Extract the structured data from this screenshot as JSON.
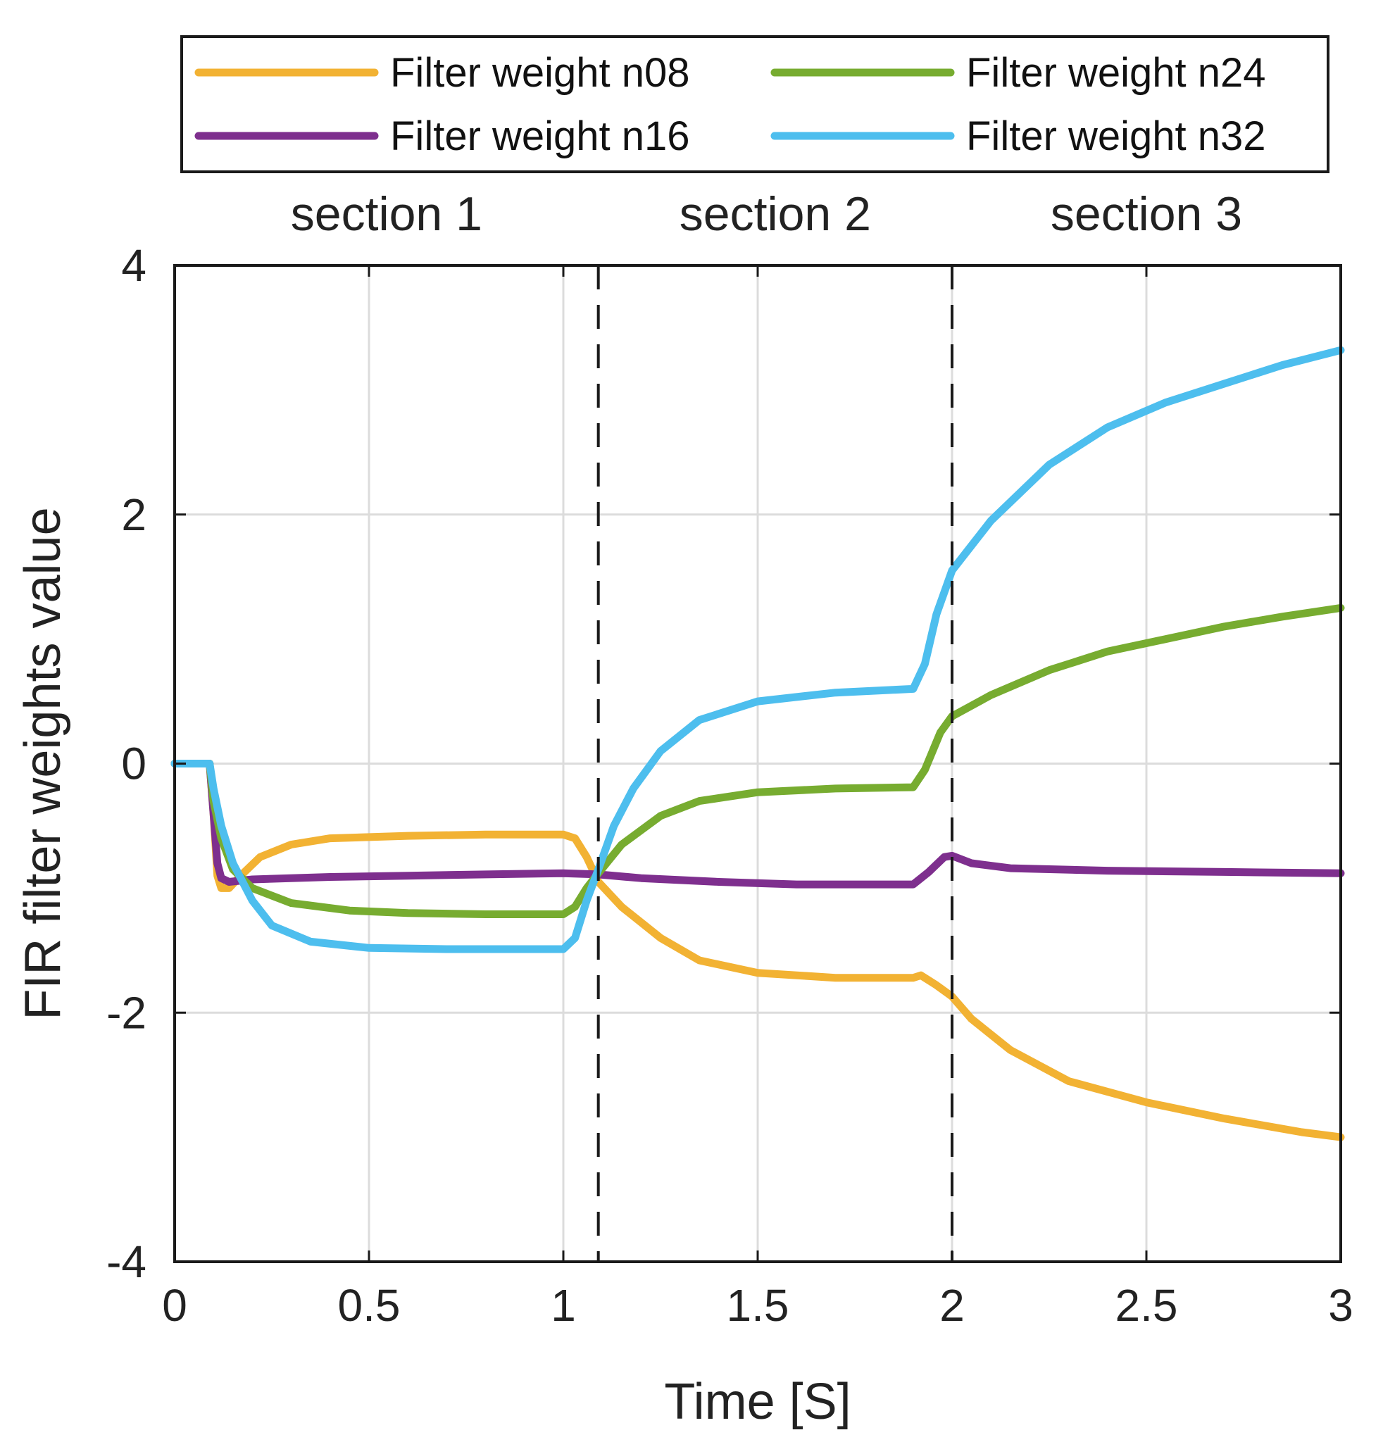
{
  "chart_data": {
    "type": "line",
    "xlabel": "Time [S]",
    "ylabel": "FIR filter weights value",
    "xlim": [
      0,
      3
    ],
    "ylim": [
      -4,
      4
    ],
    "xticks": [
      0,
      0.5,
      1,
      1.5,
      2,
      2.5,
      3
    ],
    "xtick_labels": [
      "0",
      "0.5",
      "1",
      "1.5",
      "2",
      "2.5",
      "3"
    ],
    "yticks": [
      -4,
      -2,
      0,
      2,
      4
    ],
    "ytick_labels": [
      "-4",
      "-2",
      "0",
      "2",
      "4"
    ],
    "grid": true,
    "legend_position": "top",
    "section_boundaries": [
      1.09,
      2.0
    ],
    "sections": [
      {
        "label": "section 1",
        "center": 0.545
      },
      {
        "label": "section 2",
        "center": 1.545
      },
      {
        "label": "section 3",
        "center": 2.5
      }
    ],
    "series": [
      {
        "name": "Filter weight n08",
        "color": "#F2B233",
        "points": [
          [
            0,
            0
          ],
          [
            0.09,
            0
          ],
          [
            0.1,
            -0.4
          ],
          [
            0.11,
            -0.9
          ],
          [
            0.12,
            -1.0
          ],
          [
            0.14,
            -1.0
          ],
          [
            0.17,
            -0.9
          ],
          [
            0.22,
            -0.75
          ],
          [
            0.3,
            -0.65
          ],
          [
            0.4,
            -0.6
          ],
          [
            0.6,
            -0.58
          ],
          [
            0.8,
            -0.57
          ],
          [
            1.0,
            -0.57
          ],
          [
            1.03,
            -0.6
          ],
          [
            1.06,
            -0.75
          ],
          [
            1.09,
            -0.95
          ],
          [
            1.15,
            -1.15
          ],
          [
            1.25,
            -1.4
          ],
          [
            1.35,
            -1.58
          ],
          [
            1.5,
            -1.68
          ],
          [
            1.7,
            -1.72
          ],
          [
            1.9,
            -1.72
          ],
          [
            1.92,
            -1.7
          ],
          [
            1.96,
            -1.78
          ],
          [
            2.0,
            -1.87
          ],
          [
            2.05,
            -2.05
          ],
          [
            2.15,
            -2.3
          ],
          [
            2.3,
            -2.55
          ],
          [
            2.5,
            -2.72
          ],
          [
            2.7,
            -2.85
          ],
          [
            2.9,
            -2.96
          ],
          [
            3.0,
            -3.0
          ]
        ]
      },
      {
        "name": "Filter weight n16",
        "color": "#7E2F8E",
        "points": [
          [
            0,
            0
          ],
          [
            0.09,
            0
          ],
          [
            0.1,
            -0.4
          ],
          [
            0.11,
            -0.8
          ],
          [
            0.12,
            -0.92
          ],
          [
            0.14,
            -0.95
          ],
          [
            0.2,
            -0.93
          ],
          [
            0.4,
            -0.91
          ],
          [
            0.6,
            -0.9
          ],
          [
            0.8,
            -0.89
          ],
          [
            1.0,
            -0.88
          ],
          [
            1.09,
            -0.89
          ],
          [
            1.2,
            -0.92
          ],
          [
            1.4,
            -0.95
          ],
          [
            1.6,
            -0.97
          ],
          [
            1.8,
            -0.97
          ],
          [
            1.9,
            -0.97
          ],
          [
            1.94,
            -0.87
          ],
          [
            1.98,
            -0.75
          ],
          [
            2.0,
            -0.74
          ],
          [
            2.05,
            -0.8
          ],
          [
            2.15,
            -0.84
          ],
          [
            2.4,
            -0.86
          ],
          [
            2.7,
            -0.87
          ],
          [
            3.0,
            -0.88
          ]
        ]
      },
      {
        "name": "Filter weight n24",
        "color": "#77AC30",
        "points": [
          [
            0,
            0
          ],
          [
            0.09,
            0
          ],
          [
            0.1,
            -0.3
          ],
          [
            0.12,
            -0.6
          ],
          [
            0.15,
            -0.85
          ],
          [
            0.2,
            -1.0
          ],
          [
            0.3,
            -1.12
          ],
          [
            0.45,
            -1.18
          ],
          [
            0.6,
            -1.2
          ],
          [
            0.8,
            -1.21
          ],
          [
            1.0,
            -1.21
          ],
          [
            1.03,
            -1.15
          ],
          [
            1.06,
            -1.0
          ],
          [
            1.09,
            -0.88
          ],
          [
            1.15,
            -0.65
          ],
          [
            1.25,
            -0.42
          ],
          [
            1.35,
            -0.3
          ],
          [
            1.5,
            -0.23
          ],
          [
            1.7,
            -0.2
          ],
          [
            1.9,
            -0.19
          ],
          [
            1.93,
            -0.05
          ],
          [
            1.97,
            0.25
          ],
          [
            2.0,
            0.38
          ],
          [
            2.1,
            0.55
          ],
          [
            2.25,
            0.75
          ],
          [
            2.4,
            0.9
          ],
          [
            2.55,
            1.0
          ],
          [
            2.7,
            1.1
          ],
          [
            2.85,
            1.18
          ],
          [
            3.0,
            1.25
          ]
        ]
      },
      {
        "name": "Filter weight n32",
        "color": "#4DBEEE",
        "points": [
          [
            0,
            0
          ],
          [
            0.09,
            0
          ],
          [
            0.1,
            -0.2
          ],
          [
            0.12,
            -0.5
          ],
          [
            0.15,
            -0.8
          ],
          [
            0.2,
            -1.1
          ],
          [
            0.25,
            -1.3
          ],
          [
            0.35,
            -1.43
          ],
          [
            0.5,
            -1.48
          ],
          [
            0.7,
            -1.49
          ],
          [
            1.0,
            -1.49
          ],
          [
            1.03,
            -1.4
          ],
          [
            1.06,
            -1.1
          ],
          [
            1.09,
            -0.85
          ],
          [
            1.13,
            -0.5
          ],
          [
            1.18,
            -0.2
          ],
          [
            1.25,
            0.1
          ],
          [
            1.35,
            0.35
          ],
          [
            1.5,
            0.5
          ],
          [
            1.7,
            0.57
          ],
          [
            1.9,
            0.6
          ],
          [
            1.93,
            0.8
          ],
          [
            1.96,
            1.2
          ],
          [
            2.0,
            1.55
          ],
          [
            2.1,
            1.95
          ],
          [
            2.25,
            2.4
          ],
          [
            2.4,
            2.7
          ],
          [
            2.55,
            2.9
          ],
          [
            2.7,
            3.05
          ],
          [
            2.85,
            3.2
          ],
          [
            3.0,
            3.32
          ]
        ]
      }
    ]
  }
}
